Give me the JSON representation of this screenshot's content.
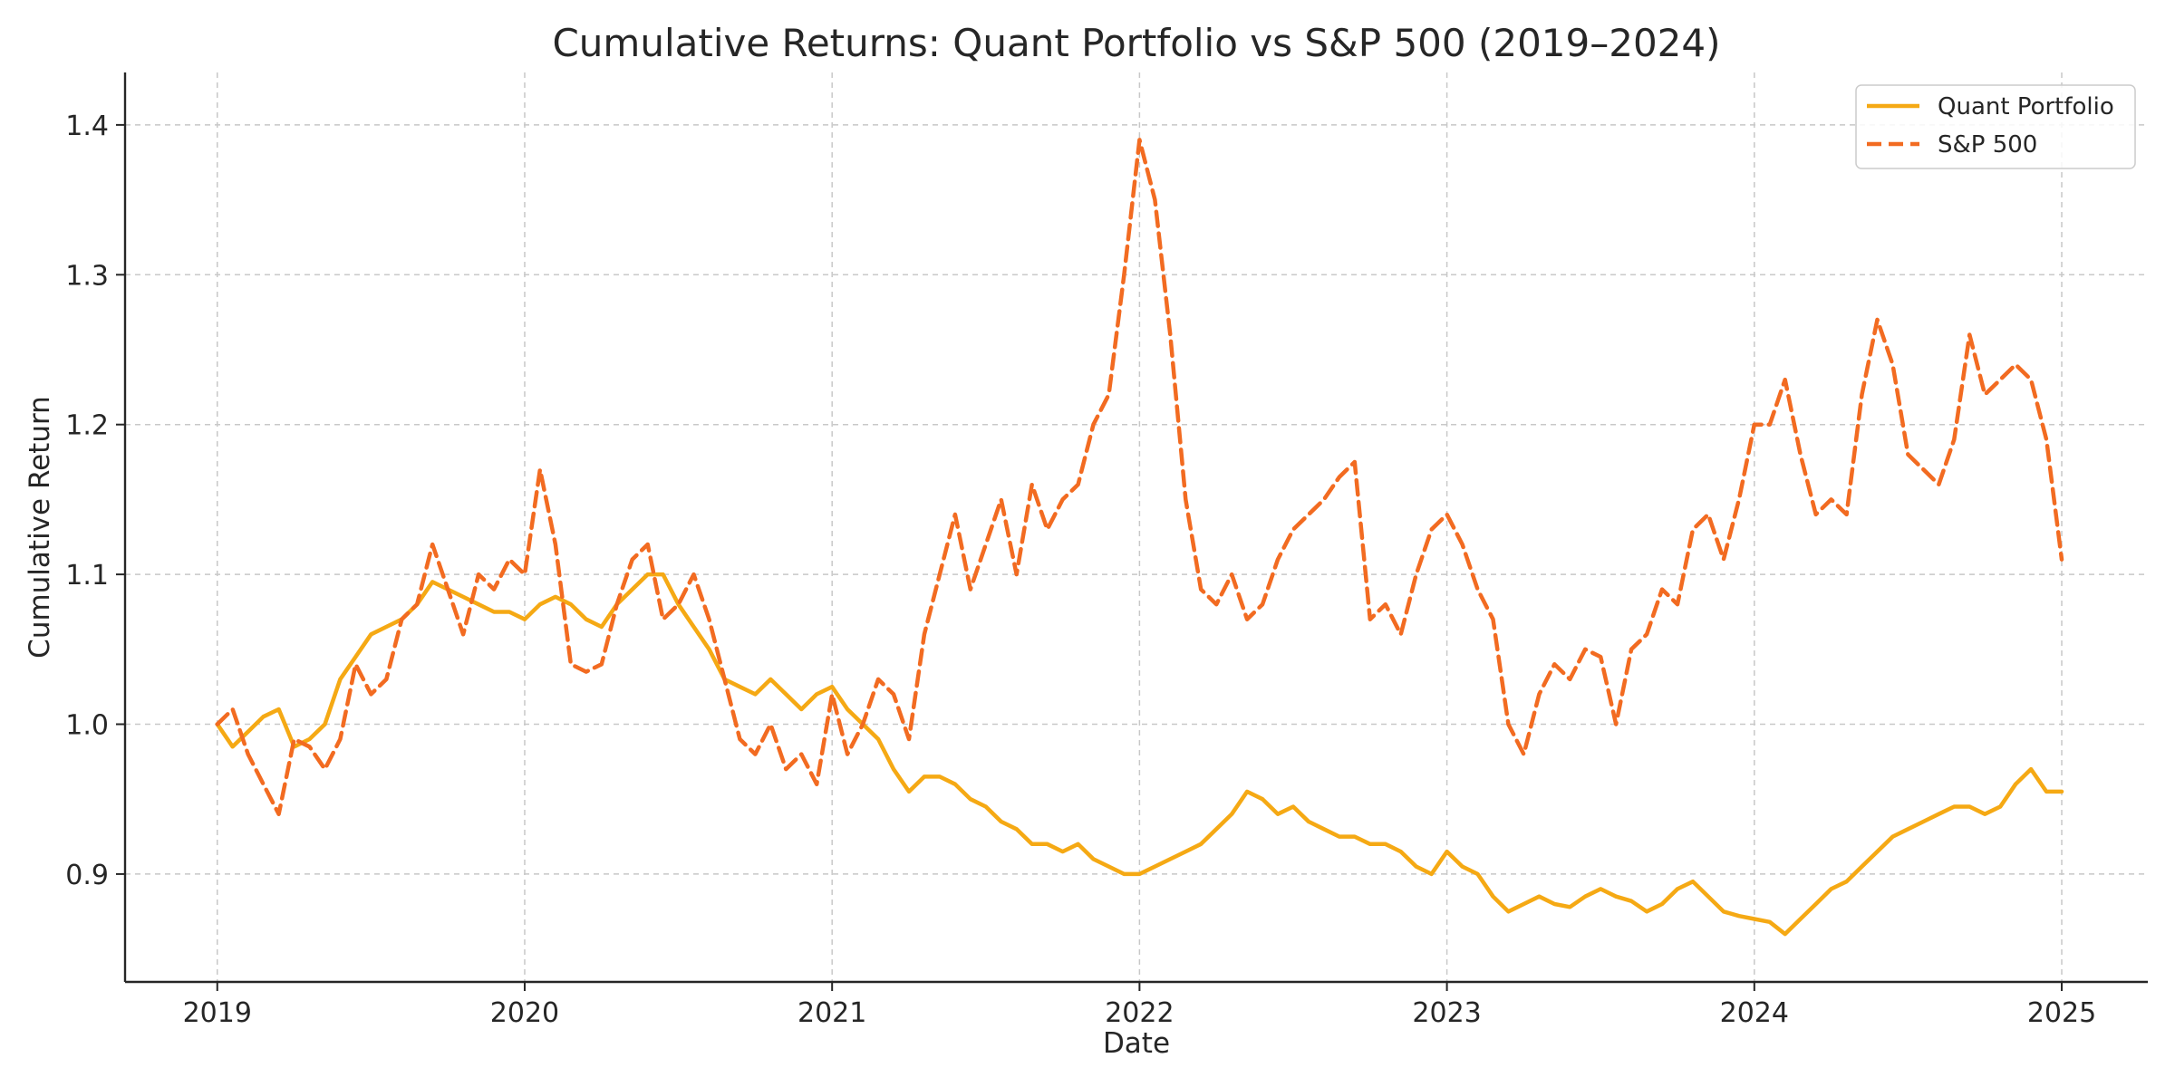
{
  "chart_data": {
    "type": "line",
    "title": "Cumulative Returns: Quant Portfolio vs S&P 500 (2019–2024)",
    "xlabel": "Date",
    "ylabel": "Cumulative Return",
    "xlim": [
      2018.7,
      2025.28
    ],
    "ylim": [
      0.828,
      1.435
    ],
    "x_ticks": [
      2019,
      2020,
      2021,
      2022,
      2023,
      2024,
      2025
    ],
    "y_ticks": [
      0.9,
      1.0,
      1.1,
      1.2,
      1.3,
      1.4
    ],
    "y_tick_labels": [
      "0.9",
      "1.0",
      "1.1",
      "1.2",
      "1.3",
      "1.4"
    ],
    "grid": true,
    "legend_position": "top-right",
    "series": [
      {
        "name": "Quant Portfolio",
        "color": "#F5A914",
        "style": "solid",
        "x": [
          2019.0,
          2019.05,
          2019.1,
          2019.15,
          2019.2,
          2019.25,
          2019.3,
          2019.35,
          2019.4,
          2019.45,
          2019.5,
          2019.55,
          2019.6,
          2019.65,
          2019.7,
          2019.75,
          2019.8,
          2019.85,
          2019.9,
          2019.95,
          2020.0,
          2020.05,
          2020.1,
          2020.15,
          2020.2,
          2020.25,
          2020.3,
          2020.35,
          2020.4,
          2020.45,
          2020.5,
          2020.55,
          2020.6,
          2020.65,
          2020.7,
          2020.75,
          2020.8,
          2020.85,
          2020.9,
          2020.95,
          2021.0,
          2021.05,
          2021.1,
          2021.15,
          2021.2,
          2021.25,
          2021.3,
          2021.35,
          2021.4,
          2021.45,
          2021.5,
          2021.55,
          2021.6,
          2021.65,
          2021.7,
          2021.75,
          2021.8,
          2021.85,
          2021.9,
          2021.95,
          2022.0,
          2022.05,
          2022.1,
          2022.15,
          2022.2,
          2022.25,
          2022.3,
          2022.35,
          2022.4,
          2022.45,
          2022.5,
          2022.55,
          2022.6,
          2022.65,
          2022.7,
          2022.75,
          2022.8,
          2022.85,
          2022.9,
          2022.95,
          2023.0,
          2023.05,
          2023.1,
          2023.15,
          2023.2,
          2023.25,
          2023.3,
          2023.35,
          2023.4,
          2023.45,
          2023.5,
          2023.55,
          2023.6,
          2023.65,
          2023.7,
          2023.75,
          2023.8,
          2023.85,
          2023.9,
          2023.95,
          2024.0,
          2024.05,
          2024.1,
          2024.15,
          2024.2,
          2024.25,
          2024.3,
          2024.35,
          2024.4,
          2024.45,
          2024.5,
          2024.55,
          2024.6,
          2024.65,
          2024.7,
          2024.75,
          2024.8,
          2024.85,
          2024.9,
          2024.95,
          2025.0
        ],
        "y": [
          1.0,
          0.985,
          0.995,
          1.005,
          1.01,
          0.985,
          0.99,
          1.0,
          1.03,
          1.045,
          1.06,
          1.065,
          1.07,
          1.08,
          1.095,
          1.09,
          1.085,
          1.08,
          1.075,
          1.075,
          1.07,
          1.08,
          1.085,
          1.08,
          1.07,
          1.065,
          1.08,
          1.09,
          1.1,
          1.1,
          1.08,
          1.065,
          1.05,
          1.03,
          1.025,
          1.02,
          1.03,
          1.02,
          1.01,
          1.02,
          1.025,
          1.01,
          1.0,
          0.99,
          0.97,
          0.955,
          0.965,
          0.965,
          0.96,
          0.95,
          0.945,
          0.935,
          0.93,
          0.92,
          0.92,
          0.915,
          0.92,
          0.91,
          0.905,
          0.9,
          0.9,
          0.905,
          0.91,
          0.915,
          0.92,
          0.93,
          0.94,
          0.955,
          0.95,
          0.94,
          0.945,
          0.935,
          0.93,
          0.925,
          0.925,
          0.92,
          0.92,
          0.915,
          0.905,
          0.9,
          0.915,
          0.905,
          0.9,
          0.885,
          0.875,
          0.88,
          0.885,
          0.88,
          0.878,
          0.885,
          0.89,
          0.885,
          0.882,
          0.875,
          0.88,
          0.89,
          0.895,
          0.885,
          0.875,
          0.872,
          0.87,
          0.868,
          0.86,
          0.87,
          0.88,
          0.89,
          0.895,
          0.905,
          0.915,
          0.925,
          0.93,
          0.935,
          0.94,
          0.945,
          0.945,
          0.94,
          0.945,
          0.96,
          0.97,
          0.955,
          0.955
        ]
      },
      {
        "name": "S&P 500",
        "color": "#F26B21",
        "style": "dashed",
        "x": [
          2019.0,
          2019.05,
          2019.1,
          2019.15,
          2019.2,
          2019.25,
          2019.3,
          2019.35,
          2019.4,
          2019.45,
          2019.5,
          2019.55,
          2019.6,
          2019.65,
          2019.7,
          2019.75,
          2019.8,
          2019.85,
          2019.9,
          2019.95,
          2020.0,
          2020.05,
          2020.1,
          2020.15,
          2020.2,
          2020.25,
          2020.3,
          2020.35,
          2020.4,
          2020.45,
          2020.5,
          2020.55,
          2020.6,
          2020.65,
          2020.7,
          2020.75,
          2020.8,
          2020.85,
          2020.9,
          2020.95,
          2021.0,
          2021.05,
          2021.1,
          2021.15,
          2021.2,
          2021.25,
          2021.3,
          2021.35,
          2021.4,
          2021.45,
          2021.5,
          2021.55,
          2021.6,
          2021.65,
          2021.7,
          2021.75,
          2021.8,
          2021.85,
          2021.9,
          2021.95,
          2022.0,
          2022.05,
          2022.1,
          2022.15,
          2022.2,
          2022.25,
          2022.3,
          2022.35,
          2022.4,
          2022.45,
          2022.5,
          2022.55,
          2022.6,
          2022.65,
          2022.7,
          2022.75,
          2022.8,
          2022.85,
          2022.9,
          2022.95,
          2023.0,
          2023.05,
          2023.1,
          2023.15,
          2023.2,
          2023.25,
          2023.3,
          2023.35,
          2023.4,
          2023.45,
          2023.5,
          2023.55,
          2023.6,
          2023.65,
          2023.7,
          2023.75,
          2023.8,
          2023.85,
          2023.9,
          2023.95,
          2024.0,
          2024.05,
          2024.1,
          2024.15,
          2024.2,
          2024.25,
          2024.3,
          2024.35,
          2024.4,
          2024.45,
          2024.5,
          2024.55,
          2024.6,
          2024.65,
          2024.7,
          2024.75,
          2024.8,
          2024.85,
          2024.9,
          2024.95,
          2025.0
        ],
        "y": [
          1.0,
          1.01,
          0.98,
          0.96,
          0.94,
          0.99,
          0.985,
          0.97,
          0.99,
          1.04,
          1.02,
          1.03,
          1.07,
          1.08,
          1.12,
          1.09,
          1.06,
          1.1,
          1.09,
          1.11,
          1.1,
          1.17,
          1.12,
          1.04,
          1.035,
          1.04,
          1.08,
          1.11,
          1.12,
          1.07,
          1.08,
          1.1,
          1.07,
          1.03,
          0.99,
          0.98,
          1.0,
          0.97,
          0.98,
          0.96,
          1.02,
          0.98,
          1.0,
          1.03,
          1.02,
          0.99,
          1.06,
          1.1,
          1.14,
          1.09,
          1.12,
          1.15,
          1.1,
          1.16,
          1.13,
          1.15,
          1.16,
          1.2,
          1.22,
          1.3,
          1.39,
          1.35,
          1.26,
          1.15,
          1.09,
          1.08,
          1.1,
          1.07,
          1.08,
          1.11,
          1.13,
          1.14,
          1.15,
          1.165,
          1.175,
          1.07,
          1.08,
          1.06,
          1.1,
          1.13,
          1.14,
          1.12,
          1.09,
          1.07,
          1.0,
          0.98,
          1.02,
          1.04,
          1.03,
          1.05,
          1.045,
          1.0,
          1.05,
          1.06,
          1.09,
          1.08,
          1.13,
          1.14,
          1.11,
          1.15,
          1.2,
          1.2,
          1.23,
          1.18,
          1.14,
          1.15,
          1.14,
          1.22,
          1.27,
          1.24,
          1.18,
          1.17,
          1.16,
          1.19,
          1.26,
          1.22,
          1.23,
          1.24,
          1.23,
          1.19,
          1.11
        ]
      }
    ]
  }
}
